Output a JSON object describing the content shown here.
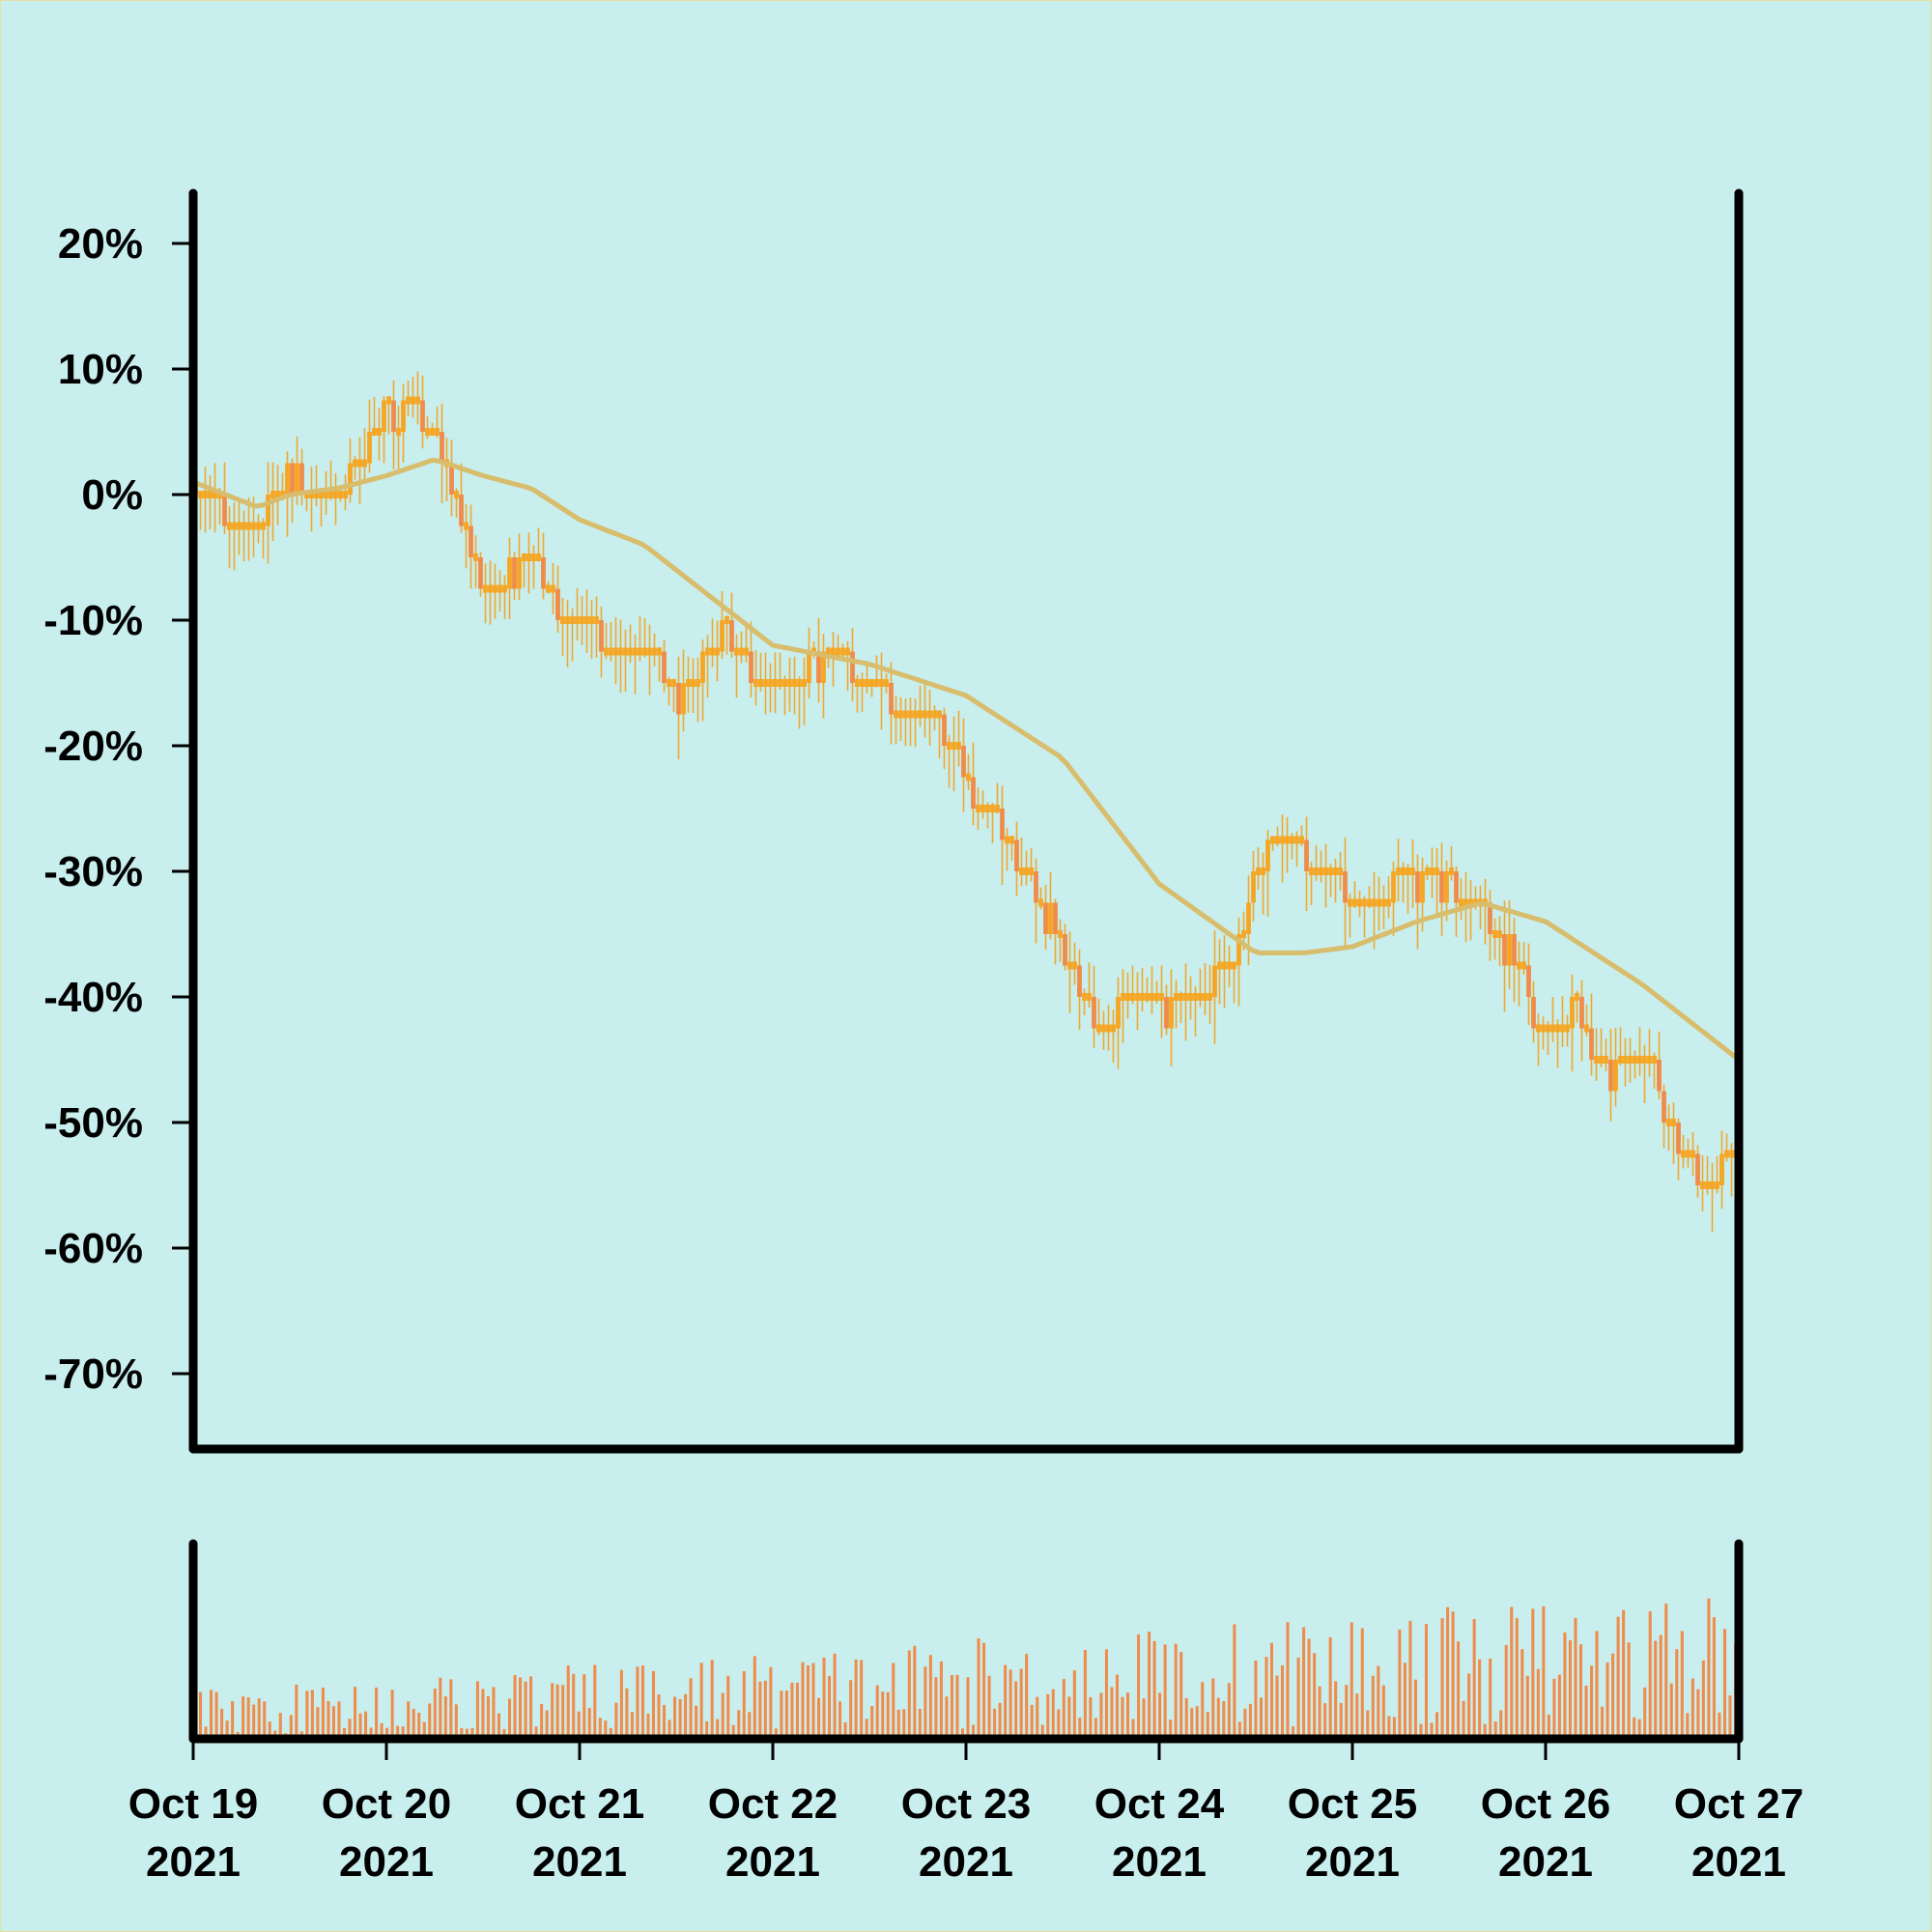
{
  "chart_data": {
    "type": "candlestick",
    "price_panel": {
      "y_ticks": [
        "20%",
        "10%",
        "0%",
        "-10%",
        "-20%",
        "-30%",
        "-40%",
        "-50%",
        "-60%",
        "-70%"
      ],
      "y_tick_values": [
        20,
        10,
        0,
        -10,
        -20,
        -30,
        -40,
        -50,
        -60,
        -70
      ],
      "ylim": [
        -76,
        24
      ],
      "xlim": [
        "2021-10-19",
        "2021-10-27"
      ],
      "grid": false,
      "candle_up_color": "#f5a623",
      "candle_down_color": "#f08c4a",
      "wick_color": "#f0a830",
      "moving_average_color": "#d7bd6c",
      "close_path": [
        {
          "date": "2021-10-19 00:00",
          "value": 1
        },
        {
          "date": "2021-10-19 06:00",
          "value": -3
        },
        {
          "date": "2021-10-19 12:00",
          "value": 2
        },
        {
          "date": "2021-10-19 18:00",
          "value": 0
        },
        {
          "date": "2021-10-20 00:00",
          "value": 6
        },
        {
          "date": "2021-10-20 04:00",
          "value": 7
        },
        {
          "date": "2021-10-20 08:00",
          "value": 1
        },
        {
          "date": "2021-10-20 12:00",
          "value": -8
        },
        {
          "date": "2021-10-20 18:00",
          "value": -5
        },
        {
          "date": "2021-10-21 00:00",
          "value": -11
        },
        {
          "date": "2021-10-21 08:00",
          "value": -12
        },
        {
          "date": "2021-10-21 12:00",
          "value": -16
        },
        {
          "date": "2021-10-21 18:00",
          "value": -11
        },
        {
          "date": "2021-10-22 00:00",
          "value": -16
        },
        {
          "date": "2021-10-22 06:00",
          "value": -13
        },
        {
          "date": "2021-10-22 12:00",
          "value": -14
        },
        {
          "date": "2021-10-22 16:00",
          "value": -17
        },
        {
          "date": "2021-10-22 20:00",
          "value": -17
        },
        {
          "date": "2021-10-23 00:00",
          "value": -23
        },
        {
          "date": "2021-10-23 06:00",
          "value": -28
        },
        {
          "date": "2021-10-23 12:00",
          "value": -36
        },
        {
          "date": "2021-10-23 16:00",
          "value": -43
        },
        {
          "date": "2021-10-23 20:00",
          "value": -40
        },
        {
          "date": "2021-10-24 00:00",
          "value": -41
        },
        {
          "date": "2021-10-24 06:00",
          "value": -40
        },
        {
          "date": "2021-10-24 10:00",
          "value": -35
        },
        {
          "date": "2021-10-24 14:00",
          "value": -27
        },
        {
          "date": "2021-10-24 20:00",
          "value": -29
        },
        {
          "date": "2021-10-25 00:00",
          "value": -33
        },
        {
          "date": "2021-10-25 06:00",
          "value": -31
        },
        {
          "date": "2021-10-25 12:00",
          "value": -31
        },
        {
          "date": "2021-10-25 16:00",
          "value": -33
        },
        {
          "date": "2021-10-25 20:00",
          "value": -37
        },
        {
          "date": "2021-10-26 00:00",
          "value": -43
        },
        {
          "date": "2021-10-26 04:00",
          "value": -41
        },
        {
          "date": "2021-10-26 08:00",
          "value": -47
        },
        {
          "date": "2021-10-26 12:00",
          "value": -44
        },
        {
          "date": "2021-10-26 16:00",
          "value": -51
        },
        {
          "date": "2021-10-26 20:00",
          "value": -55
        },
        {
          "date": "2021-10-27 00:00",
          "value": -52
        }
      ],
      "moving_average": [
        {
          "date": "2021-10-19 00:00",
          "value": 1
        },
        {
          "date": "2021-10-19 08:00",
          "value": -1
        },
        {
          "date": "2021-10-19 12:00",
          "value": 0
        },
        {
          "date": "2021-10-19 18:00",
          "value": 0.5
        },
        {
          "date": "2021-10-20 00:00",
          "value": 1.5
        },
        {
          "date": "2021-10-20 06:00",
          "value": 2.8
        },
        {
          "date": "2021-10-20 12:00",
          "value": 1.5
        },
        {
          "date": "2021-10-20 18:00",
          "value": 0.5
        },
        {
          "date": "2021-10-21 00:00",
          "value": -2
        },
        {
          "date": "2021-10-21 08:00",
          "value": -4
        },
        {
          "date": "2021-10-21 18:00",
          "value": -9
        },
        {
          "date": "2021-10-22 00:00",
          "value": -12
        },
        {
          "date": "2021-10-22 12:00",
          "value": -13.5
        },
        {
          "date": "2021-10-23 00:00",
          "value": -16
        },
        {
          "date": "2021-10-23 12:00",
          "value": -21
        },
        {
          "date": "2021-10-24 00:00",
          "value": -31
        },
        {
          "date": "2021-10-24 12:00",
          "value": -36.5
        },
        {
          "date": "2021-10-24 18:00",
          "value": -36.5
        },
        {
          "date": "2021-10-25 00:00",
          "value": -36
        },
        {
          "date": "2021-10-25 08:00",
          "value": -34
        },
        {
          "date": "2021-10-25 16:00",
          "value": -32.5
        },
        {
          "date": "2021-10-26 00:00",
          "value": -34
        },
        {
          "date": "2021-10-26 12:00",
          "value": -39
        },
        {
          "date": "2021-10-27 00:00",
          "value": -45
        }
      ]
    },
    "volume_panel": {
      "bar_color": "#f08c4a",
      "shared_x_axis": true
    },
    "x_ticks": [
      {
        "date": "2021-10-19",
        "line1": "Oct 19",
        "line2": "2021"
      },
      {
        "date": "2021-10-20",
        "line1": "Oct 20",
        "line2": "2021"
      },
      {
        "date": "2021-10-21",
        "line1": "Oct 21",
        "line2": "2021"
      },
      {
        "date": "2021-10-22",
        "line1": "Oct 22",
        "line2": "2021"
      },
      {
        "date": "2021-10-23",
        "line1": "Oct 23",
        "line2": "2021"
      },
      {
        "date": "2021-10-24",
        "line1": "Oct 24",
        "line2": "2021"
      },
      {
        "date": "2021-10-25",
        "line1": "Oct 25",
        "line2": "2021"
      },
      {
        "date": "2021-10-26",
        "line1": "Oct 26",
        "line2": "2021"
      },
      {
        "date": "2021-10-27",
        "line1": "Oct 27",
        "line2": "2021"
      }
    ]
  }
}
